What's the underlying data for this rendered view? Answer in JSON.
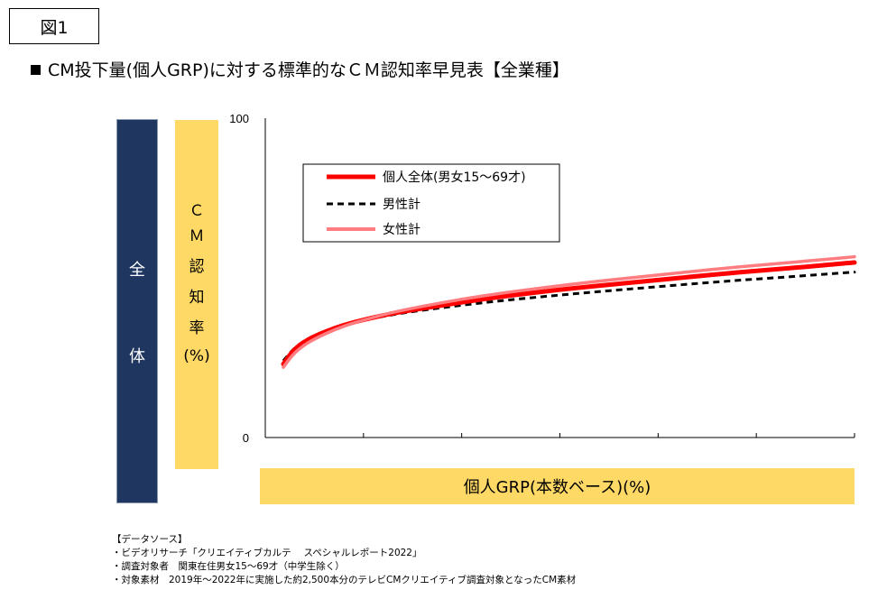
{
  "figure_label": "図1",
  "title": "CM投下量(個人GRP)に対する標準的なＣＭ認知率早見表【全業種】",
  "side_band": {
    "chars": [
      "全",
      "体"
    ]
  },
  "y_band": {
    "chars": [
      "Ｃ",
      "Ｍ",
      "認",
      "知",
      "率",
      "(%)"
    ]
  },
  "x_band_label": "個人GRP(本数ベース)(%)",
  "chart_data": {
    "type": "line",
    "x_tick_count": 6,
    "ylim": [
      0,
      100
    ],
    "y_ticks": [
      "0",
      "100"
    ],
    "grid": false,
    "legend_position": "top-left",
    "series": [
      {
        "name": "個人全体(男女15～69才)",
        "color": "#ff0000",
        "style": "solid-thick",
        "x": [
          0.0,
          0.02,
          0.05,
          0.1,
          0.15,
          0.2,
          0.3,
          0.4,
          0.5,
          0.6,
          0.7,
          0.8,
          0.9,
          1.0
        ],
        "values": [
          23,
          28,
          31.5,
          35,
          37.3,
          39.2,
          42,
          44.6,
          46.6,
          48.4,
          50.1,
          51.8,
          53.2,
          54.8
        ]
      },
      {
        "name": "男性計",
        "color": "#000000",
        "style": "dashed",
        "x": [
          0.0,
          0.02,
          0.05,
          0.1,
          0.15,
          0.2,
          0.3,
          0.4,
          0.5,
          0.6,
          0.7,
          0.8,
          0.9,
          1.0
        ],
        "values": [
          24,
          28.3,
          31.8,
          35.1,
          37.1,
          38.8,
          41.2,
          43.2,
          44.9,
          46.4,
          47.9,
          49.3,
          50.5,
          51.8
        ]
      },
      {
        "name": "女性計",
        "color": "#ff7c80",
        "style": "solid",
        "x": [
          0.0,
          0.02,
          0.05,
          0.1,
          0.15,
          0.2,
          0.3,
          0.4,
          0.5,
          0.6,
          0.7,
          0.8,
          0.9,
          1.0
        ],
        "values": [
          22,
          26.8,
          30.6,
          34.6,
          37.3,
          39.6,
          43,
          45.7,
          47.9,
          49.9,
          51.7,
          53.5,
          55,
          56.6
        ]
      }
    ]
  },
  "source": {
    "heading": "【データソース】",
    "lines": [
      "・ビデオリサーチ「クリエイティブカルテ　 スペシャルレポート2022」",
      "・調査対象者　関東在住男女15～69才（中学生除く）",
      "・対象素材　2019年～2022年に実施した約2,500本分のテレビCMクリエイティブ調査対象となったCM素材"
    ]
  }
}
